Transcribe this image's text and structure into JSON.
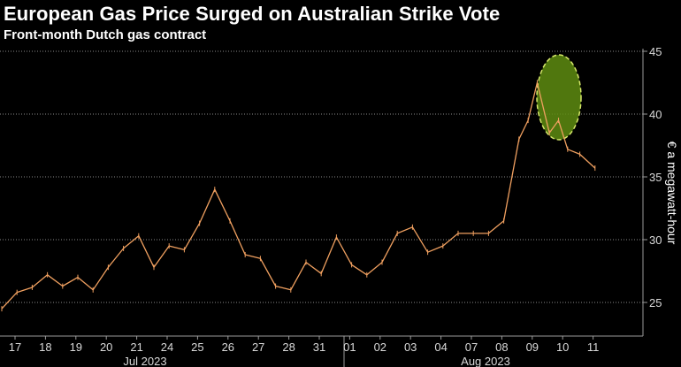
{
  "chart_data": {
    "type": "line",
    "title": "European Gas Price Surged on Australian Strike Vote",
    "subtitle": "Front-month Dutch gas contract",
    "ylabel": "€ a megawatt-hour",
    "xlabel": "",
    "ylim": [
      22,
      46
    ],
    "yticks": [
      25,
      30,
      35,
      40,
      45
    ],
    "x_day_labels": [
      "17",
      "18",
      "19",
      "20",
      "21",
      "24",
      "25",
      "26",
      "27",
      "28",
      "31",
      "01",
      "02",
      "03",
      "04",
      "07",
      "08",
      "09",
      "10",
      "11"
    ],
    "x_month_labels": [
      "Jul 2023",
      "Aug 2023"
    ],
    "grid": "horizontal dotted",
    "colors": {
      "line": "#f0a060",
      "highlight_fill": "#5e8c10",
      "highlight_stroke": "#d6e86a"
    },
    "series": [
      {
        "x_index": [
          0,
          0.5,
          1,
          1.5,
          2,
          2.5,
          3,
          3.5,
          4,
          4.5,
          5,
          5.5,
          6,
          6.5,
          7,
          7.5,
          8,
          8.5,
          9,
          9.5,
          10,
          10.5,
          11,
          11.5,
          12,
          12.5,
          13,
          13.5,
          14,
          14.5,
          15,
          15.5,
          16,
          16.5,
          17,
          17.3,
          17.6,
          18,
          18.3,
          18.6,
          19,
          19.5
        ],
        "values": [
          24.5,
          25.8,
          26.2,
          27.2,
          26.3,
          27.0,
          26.0,
          27.8,
          29.3,
          30.3,
          27.8,
          29.5,
          29.2,
          31.3,
          34.0,
          31.5,
          28.8,
          28.5,
          26.3,
          26.0,
          28.2,
          27.3,
          30.2,
          28.0,
          27.2,
          28.2,
          30.5,
          31.0,
          29.0,
          29.5,
          30.5,
          30.5,
          30.5,
          31.5,
          38.0,
          39.5,
          42.5,
          38.5,
          39.5,
          37.2,
          36.8,
          35.7
        ]
      }
    ],
    "annotation": "highlighted spike around 09 Aug"
  }
}
